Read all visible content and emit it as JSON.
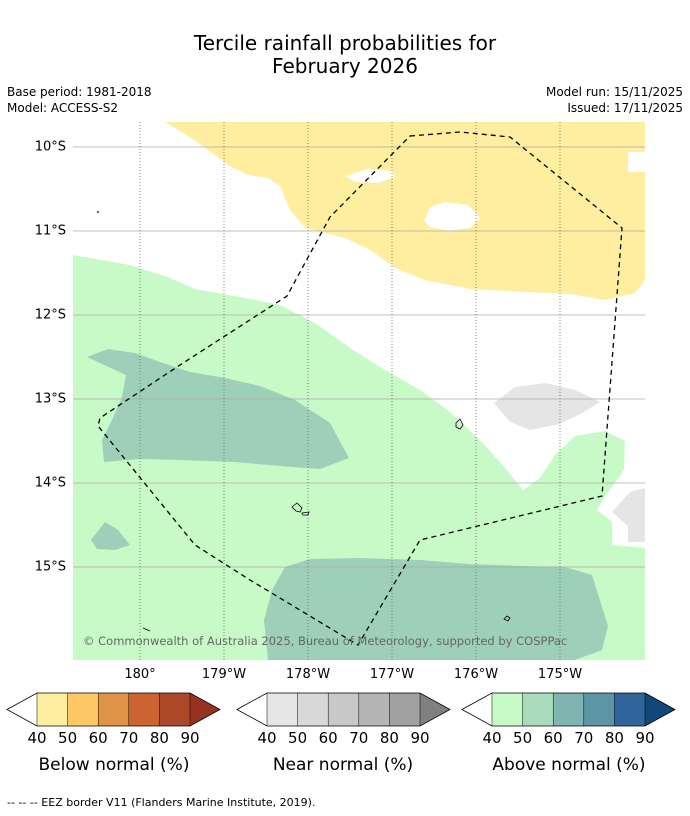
{
  "title": {
    "line1": "Tercile rainfall probabilities for",
    "line2": "February 2026"
  },
  "meta": {
    "base_period": "Base period: 1981-2018",
    "model": "Model: ACCESS-S2",
    "model_run": "Model run: 15/11/2025",
    "issued": "Issued: 17/11/2025"
  },
  "map": {
    "lat_labels": [
      "10°S",
      "11°S",
      "12°S",
      "13°S",
      "14°S",
      "15°S"
    ],
    "lon_labels": [
      "180°",
      "179°W",
      "178°W",
      "177°W",
      "176°W",
      "175°W"
    ],
    "copyright": "© Commonwealth of Australia 2025, Bureau of Meteorology, supported by COSPPac",
    "region_colors": {
      "below_40": "#ffeea0",
      "above_40": "#c8fac8",
      "above_60": "#9ecfb8",
      "near_40": "#e5e5e5"
    }
  },
  "legends": {
    "ticks": [
      "40",
      "50",
      "60",
      "70",
      "80",
      "90"
    ],
    "below": {
      "label": "Below normal (%)",
      "colors": [
        "#ffeea0",
        "#fdc865",
        "#e09448",
        "#cc6432",
        "#ac4828",
        "#983220"
      ]
    },
    "near": {
      "label": "Near normal (%)",
      "colors": [
        "#e6e6e6",
        "#d8d8d8",
        "#c8c8c8",
        "#b4b4b4",
        "#a0a0a0",
        "#808080"
      ]
    },
    "above": {
      "label": "Above normal (%)",
      "colors": [
        "#c8fac8",
        "#a8dcbc",
        "#80b4b0",
        "#5c96a4",
        "#30649c",
        "#124878"
      ]
    }
  },
  "footnote": "--  --  -- EEZ border V11 (Flanders Marine Institute, 2019)."
}
